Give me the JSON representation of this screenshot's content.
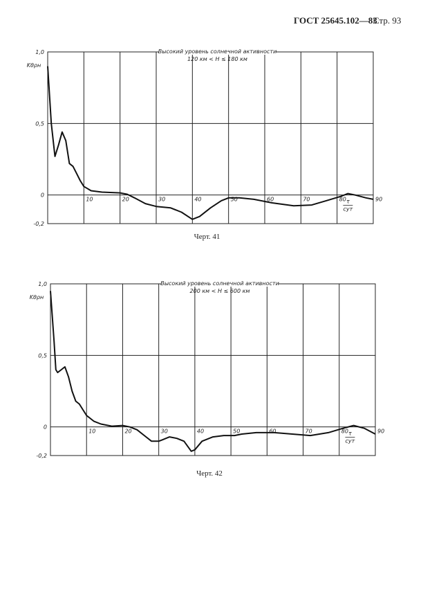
{
  "header": {
    "title": "ГОСТ 25645.102—83",
    "page": "Стр. 93"
  },
  "chart_data": [
    {
      "type": "line",
      "title": "Высокий уровень солнечной активности",
      "subtitle": "120 км < H ≤ 180 км",
      "y_label": "Kθρн",
      "x_label": [
        "τ",
        "сут"
      ],
      "caption": "Черт. 41",
      "xlim": [
        0,
        90
      ],
      "xticks": [
        10,
        20,
        30,
        40,
        50,
        60,
        70,
        80,
        90
      ],
      "ylim": [
        -0.2,
        1
      ],
      "yticks": [
        {
          "value": 1,
          "label": "1,0"
        },
        {
          "value": 0.5,
          "label": "0,5"
        },
        0,
        {
          "value": -0.2,
          "label": "-0,2"
        }
      ],
      "grid": true,
      "color": "#111",
      "x": [
        0,
        1,
        2,
        3,
        4,
        5,
        6,
        7,
        8,
        9,
        10,
        12,
        15,
        20,
        22,
        24,
        27,
        30,
        34,
        37,
        40,
        42,
        45,
        48,
        50,
        53,
        57,
        62,
        68,
        73,
        77,
        81,
        83,
        85,
        88,
        90
      ],
      "values": [
        0.9,
        0.5,
        0.27,
        0.35,
        0.44,
        0.38,
        0.22,
        0.2,
        0.15,
        0.1,
        0.06,
        0.03,
        0.02,
        0.015,
        0.005,
        -0.02,
        -0.06,
        -0.08,
        -0.09,
        -0.12,
        -0.17,
        -0.15,
        -0.09,
        -0.04,
        -0.02,
        -0.02,
        -0.03,
        -0.055,
        -0.075,
        -0.07,
        -0.04,
        -0.01,
        0.01,
        0.0,
        -0.02,
        -0.03
      ]
    },
    {
      "type": "line",
      "title": "Высокий уровень солнечной активности",
      "subtitle": "200 км < H ≤ 600 км",
      "y_label": "Kθρн",
      "x_label": [
        "τ",
        "сут"
      ],
      "caption": "Черт. 42",
      "xlim": [
        0,
        90
      ],
      "xticks": [
        10,
        20,
        30,
        40,
        50,
        60,
        70,
        80,
        90
      ],
      "ylim": [
        -0.2,
        1
      ],
      "yticks": [
        {
          "value": 1,
          "label": "1,0"
        },
        {
          "value": 0.5,
          "label": "0,5"
        },
        0,
        {
          "value": -0.2,
          "label": "-0,2"
        }
      ],
      "grid": true,
      "color": "#111",
      "x": [
        0,
        1,
        1.5,
        2,
        3,
        4,
        5,
        6,
        7,
        8,
        9,
        10,
        12,
        14,
        17,
        20,
        22,
        24,
        26,
        28,
        30,
        31,
        33,
        35,
        37,
        39,
        40,
        42,
        45,
        48,
        51,
        53,
        57,
        62,
        67,
        72,
        77,
        81,
        84,
        87,
        90
      ],
      "values": [
        0.95,
        0.6,
        0.4,
        0.38,
        0.4,
        0.42,
        0.35,
        0.25,
        0.18,
        0.16,
        0.12,
        0.08,
        0.04,
        0.02,
        0.005,
        0.01,
        0.0,
        -0.02,
        -0.06,
        -0.1,
        -0.1,
        -0.09,
        -0.07,
        -0.08,
        -0.1,
        -0.17,
        -0.16,
        -0.1,
        -0.07,
        -0.06,
        -0.06,
        -0.05,
        -0.04,
        -0.04,
        -0.05,
        -0.06,
        -0.04,
        -0.01,
        0.01,
        -0.01,
        -0.05
      ]
    }
  ]
}
